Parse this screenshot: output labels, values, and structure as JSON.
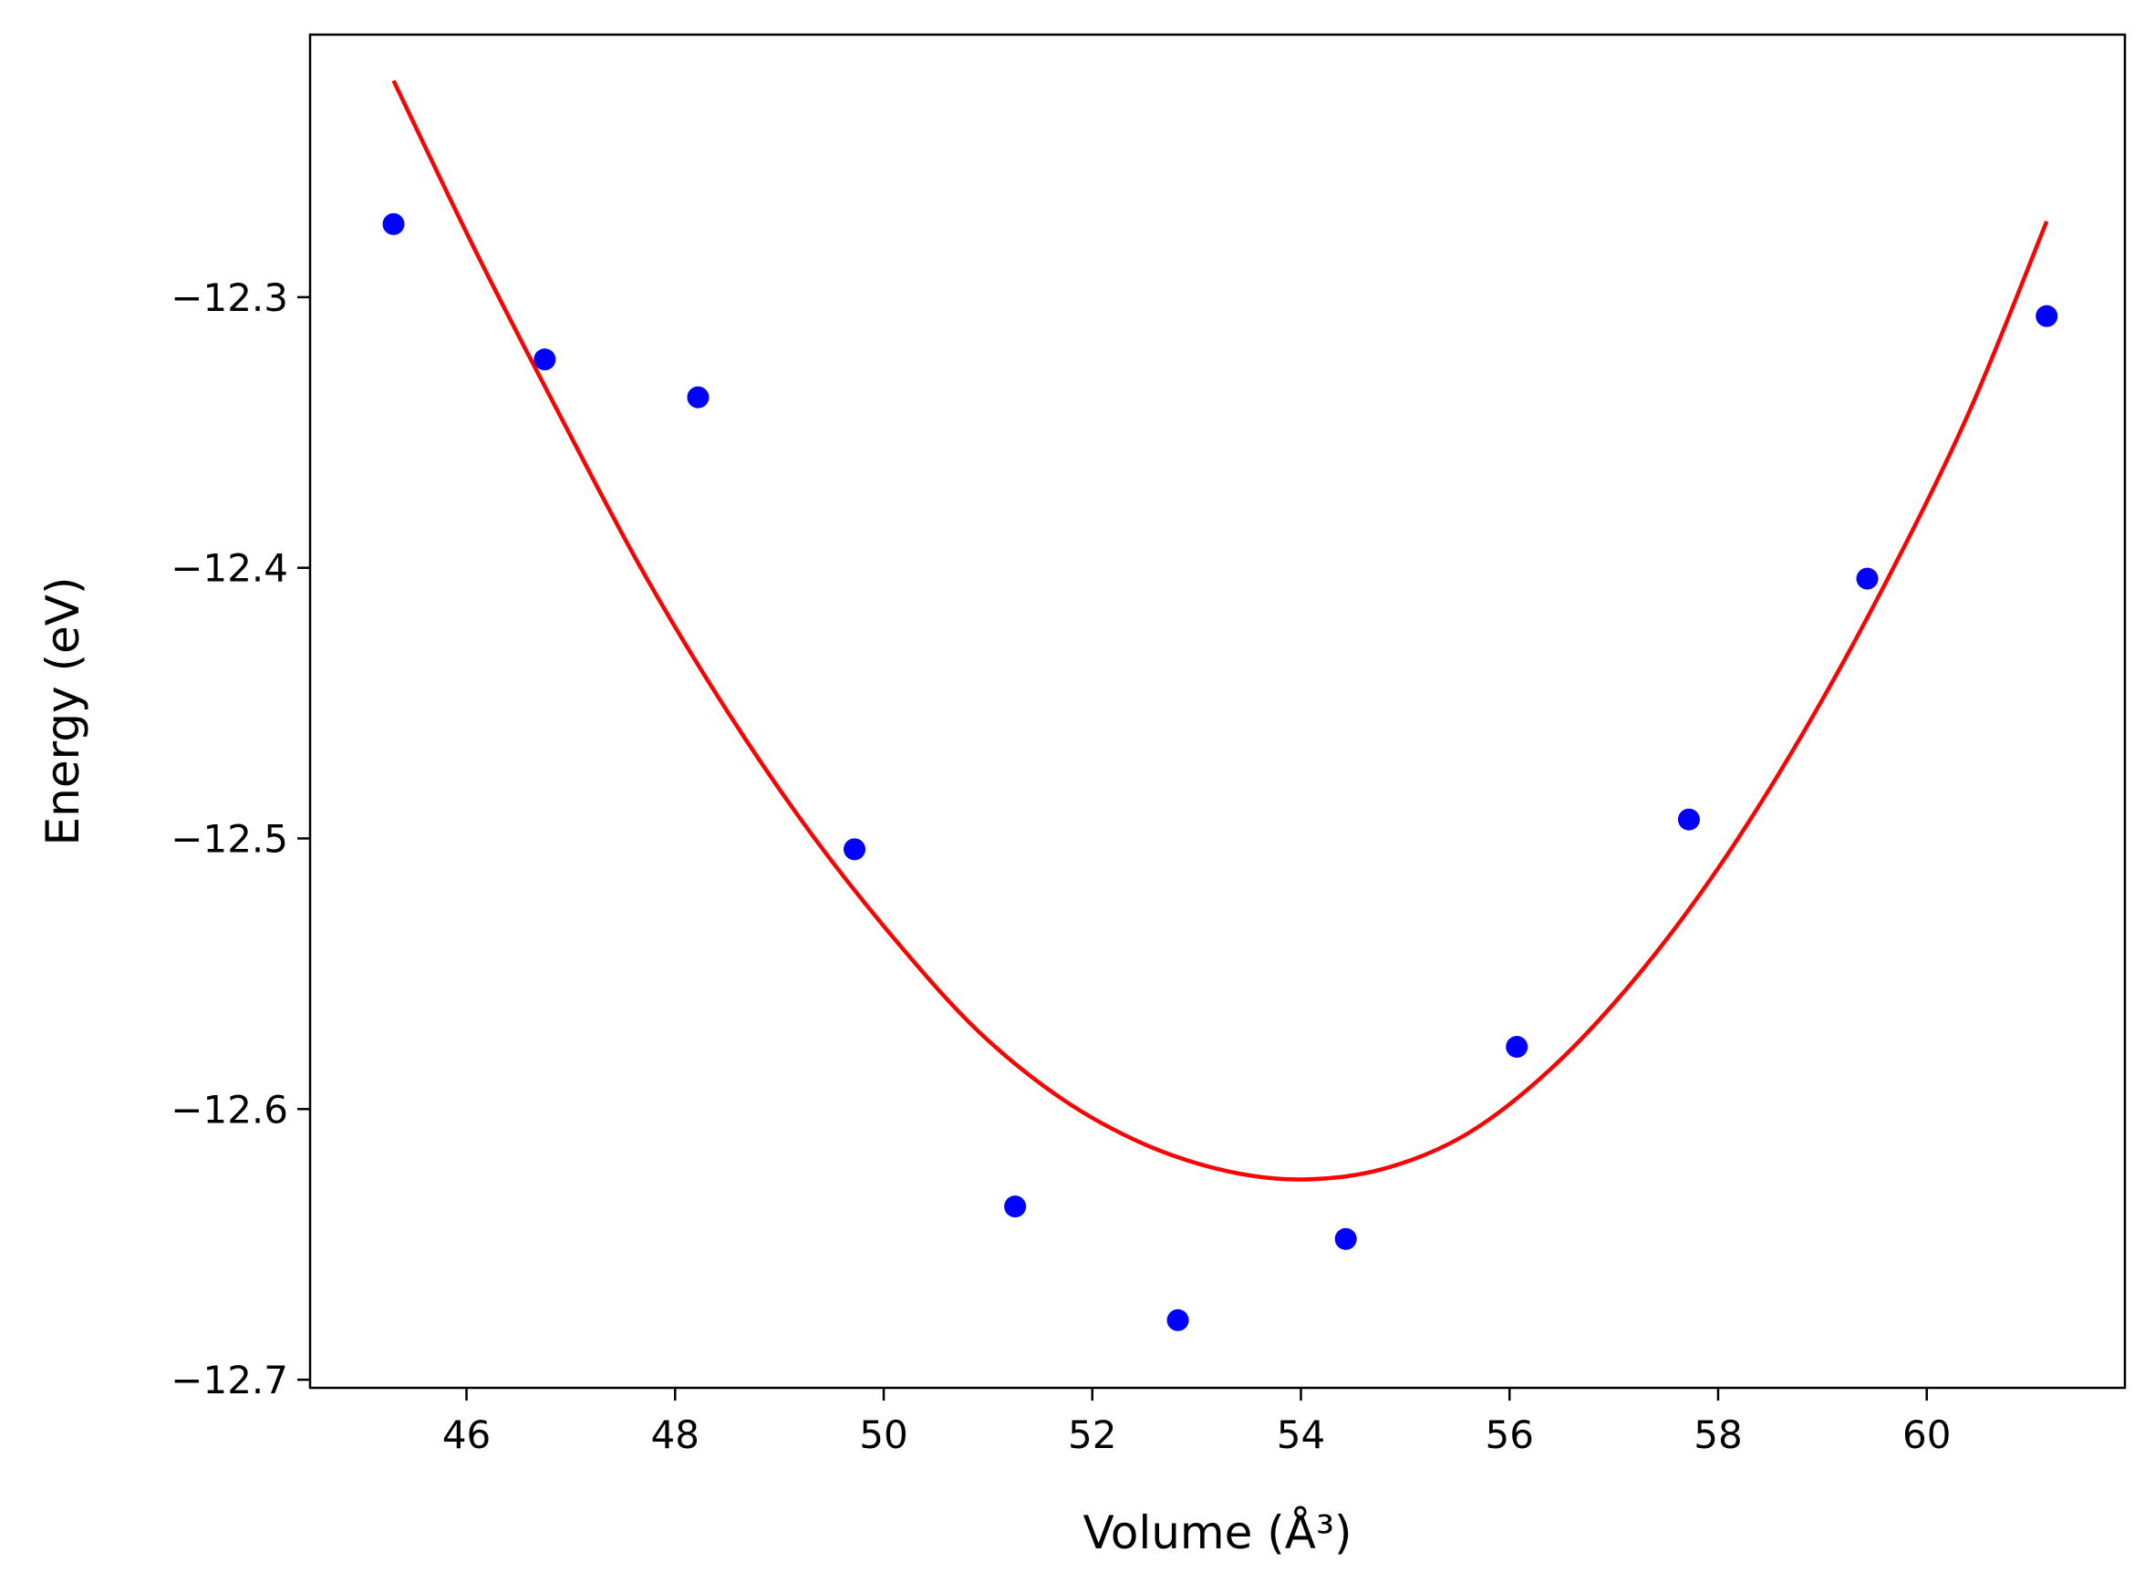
{
  "chart_data": {
    "type": "scatter",
    "xlabel": "Volume (Å³)",
    "ylabel": "Energy (eV)",
    "xlim": [
      44.5,
      61.9
    ],
    "ylim": [
      -12.703,
      -12.203
    ],
    "xticks": [
      46,
      48,
      50,
      52,
      54,
      56,
      58,
      60
    ],
    "yticks": [
      -12.7,
      -12.6,
      -12.5,
      -12.4,
      -12.3
    ],
    "xtick_labels": [
      "46",
      "48",
      "50",
      "52",
      "54",
      "56",
      "58",
      "60"
    ],
    "ytick_labels": [
      "−12.7",
      "−12.6",
      "−12.5",
      "−12.4",
      "−12.3"
    ],
    "grid": false,
    "series": [
      {
        "kind": "points",
        "color": "#0000ff",
        "x": [
          45.3,
          46.75,
          48.22,
          49.72,
          51.26,
          52.82,
          54.43,
          56.07,
          57.72,
          59.43,
          61.15
        ],
        "y": [
          -12.273,
          -12.323,
          -12.337,
          -12.504,
          -12.636,
          -12.678,
          -12.648,
          -12.577,
          -12.493,
          -12.404,
          -12.307
        ]
      },
      {
        "kind": "fit-line",
        "color": "#ff0000",
        "x": [
          45.3,
          46.1,
          46.9,
          47.7,
          48.5,
          49.3,
          50.1,
          50.9,
          51.7,
          52.5,
          53.3,
          54.03,
          54.8,
          55.6,
          56.4,
          57.2,
          58.0,
          58.8,
          59.6,
          60.4,
          61.15
        ],
        "y": [
          -12.22,
          -12.284,
          -12.344,
          -12.402,
          -12.453,
          -12.498,
          -12.537,
          -12.571,
          -12.596,
          -12.613,
          -12.623,
          -12.626,
          -12.622,
          -12.609,
          -12.585,
          -12.552,
          -12.511,
          -12.462,
          -12.406,
          -12.343,
          -12.272
        ]
      }
    ]
  }
}
